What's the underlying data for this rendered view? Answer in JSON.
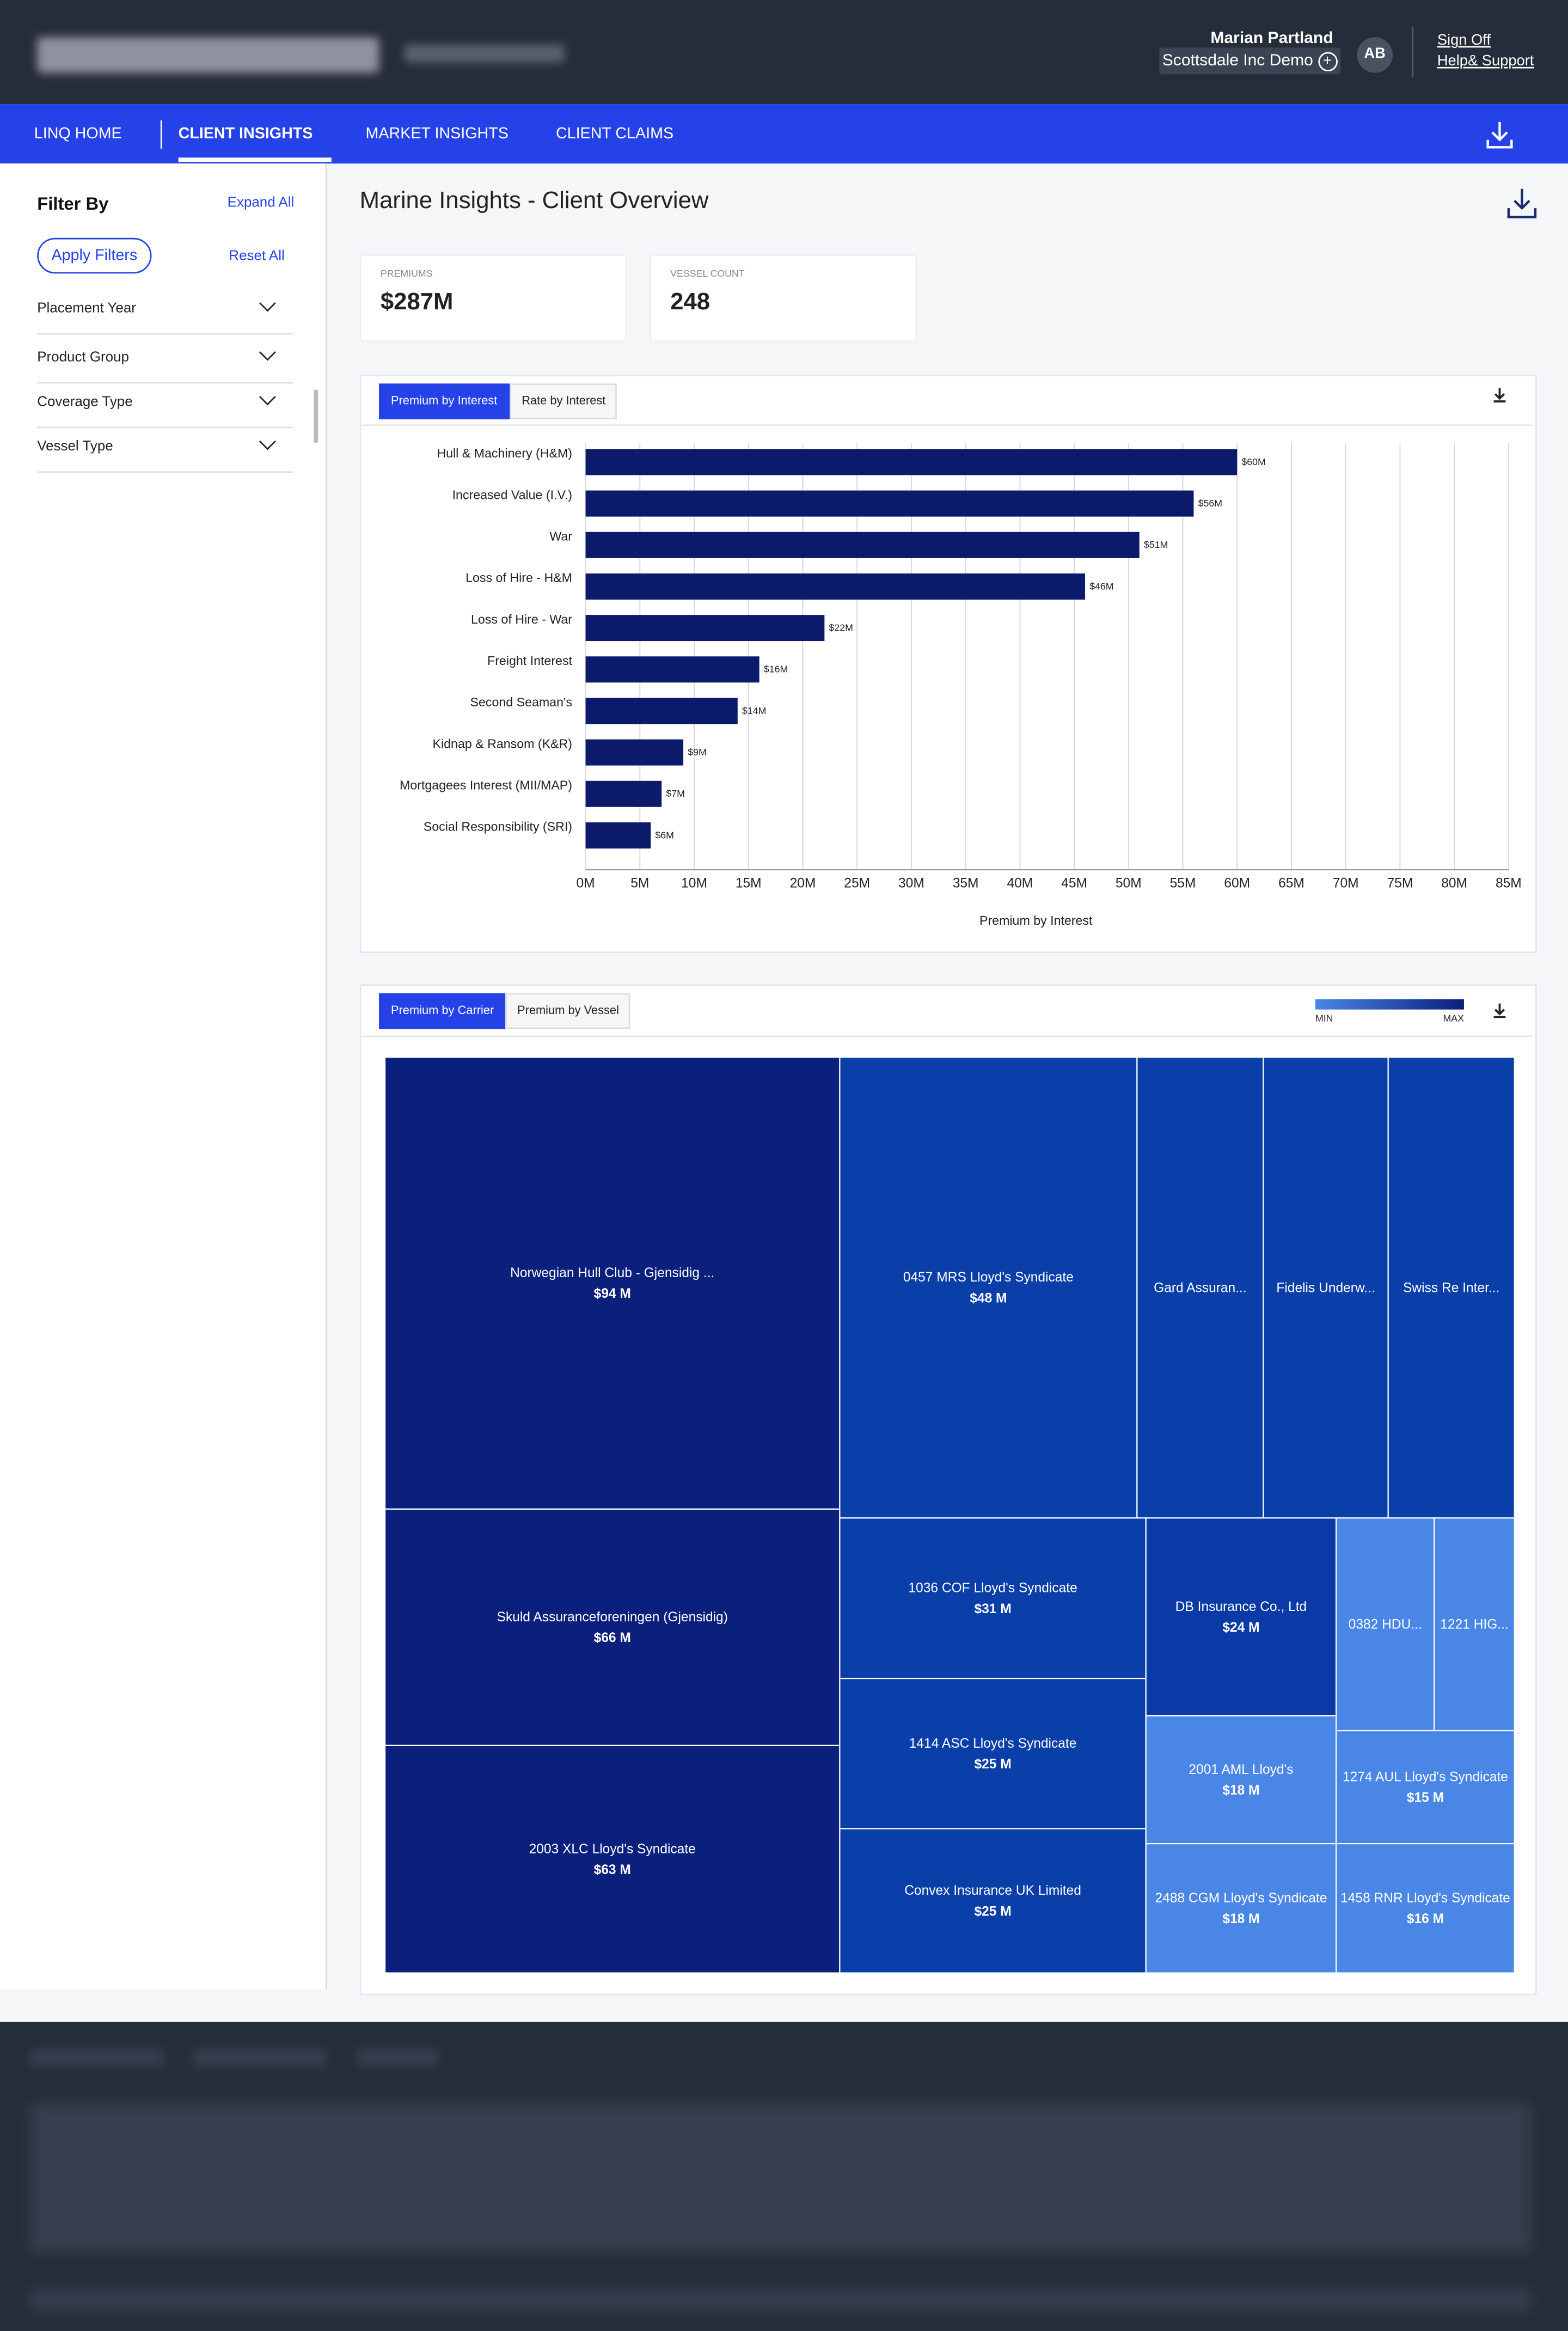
{
  "header": {
    "user_name": "Marian Partland",
    "org": "Scottsdale Inc Demo",
    "initials": "AB",
    "links": [
      "Sign Off",
      "Help& Support"
    ]
  },
  "nav": {
    "items": [
      "LINQ HOME",
      "CLIENT INSIGHTS",
      "MARKET INSIGHTS",
      "CLIENT CLAIMS"
    ],
    "active": 1
  },
  "sidebar": {
    "title": "Filter By",
    "expand": "Expand All",
    "apply": "Apply Filters",
    "reset": "Reset All",
    "filters": [
      "Placement Year",
      "Product Group",
      "Coverage Type",
      "Vessel Type"
    ]
  },
  "page": {
    "title": "Marine Insights - Client Overview"
  },
  "kpis": [
    {
      "label": "PREMIUMS",
      "value": "$287M"
    },
    {
      "label": "VESSEL COUNT",
      "value": "248"
    }
  ],
  "chart_data": [
    {
      "type": "bar",
      "orientation": "horizontal",
      "tabs": [
        "Premium by Interest",
        "Rate by Interest"
      ],
      "active_tab": 0,
      "categories": [
        "Hull & Machinery (H&M)",
        "Increased Value (I.V.)",
        "War",
        "Loss of Hire - H&M",
        "Loss of Hire - War",
        "Freight Interest",
        "Second Seaman's",
        "Kidnap & Ransom (K&R)",
        "Mortgagees Interest (MII/MAP)",
        "Social Responsibility (SRI)"
      ],
      "values": [
        60,
        56,
        51,
        46,
        22,
        16,
        14,
        9,
        7,
        6
      ],
      "value_labels": [
        "$60M",
        "$56M",
        "$51M",
        "$46M",
        "$22M",
        "$16M",
        "$14M",
        "$9M",
        "$7M",
        "$6M"
      ],
      "color": "#0c1a6b",
      "xlim": [
        0,
        85
      ],
      "xticks": [
        {
          "value": 0,
          "label": "0M"
        },
        {
          "value": 5,
          "label": "5M"
        },
        {
          "value": 10,
          "label": "10M"
        },
        {
          "value": 15,
          "label": "15M"
        },
        {
          "value": 20,
          "label": "20M"
        },
        {
          "value": 25,
          "label": "25M"
        },
        {
          "value": 30,
          "label": "30M"
        },
        {
          "value": 35,
          "label": "35M"
        },
        {
          "value": 40,
          "label": "40M"
        },
        {
          "value": 45,
          "label": "45M"
        },
        {
          "value": 50,
          "label": "50M"
        },
        {
          "value": 55,
          "label": "55M"
        },
        {
          "value": 60,
          "label": "60M"
        },
        {
          "value": 65,
          "label": "65M"
        },
        {
          "value": 70,
          "label": "70M"
        },
        {
          "value": 75,
          "label": "75M"
        },
        {
          "value": 80,
          "label": "80M"
        },
        {
          "value": 85,
          "label": "85M"
        }
      ],
      "x_label": "Premium by Interest",
      "grid": true
    },
    {
      "type": "treemap",
      "tabs": [
        "Premium by Carrier",
        "Premium by Vessel"
      ],
      "active_tab": 0,
      "legend": {
        "min_label": "MIN",
        "max_label": "MAX",
        "min_color": "#4a86e6",
        "max_color": "#0b1f7c"
      },
      "tiles": [
        {
          "name": "Norwegian Hull Club - Gjensidig ...",
          "value": 94,
          "value_label": "$94 M",
          "color": "#0b1f7c"
        },
        {
          "name": "Skuld Assuranceforeningen (Gjensidig)",
          "value": 66,
          "value_label": "$66 M",
          "color": "#0b1f7c"
        },
        {
          "name": "2003 XLC Lloyd's Syndicate",
          "value": 63,
          "value_label": "$63 M",
          "color": "#0b1f7c"
        },
        {
          "name": "0457 MRS Lloyd's Syndicate",
          "value": 48,
          "value_label": "$48 M",
          "color": "#0a3ea8"
        },
        {
          "name": "Gard Assuran...",
          "value": 21,
          "color": "#0a3ea8"
        },
        {
          "name": "Fidelis Underw...",
          "value": 21,
          "color": "#0a3ea8"
        },
        {
          "name": "Swiss Re Inter...",
          "value": 21,
          "color": "#0a3ea8"
        },
        {
          "name": "1036 COF Lloyd's Syndicate",
          "value": 31,
          "value_label": "$31 M",
          "color": "#0a3ea8"
        },
        {
          "name": "1414 ASC Lloyd's Syndicate",
          "value": 25,
          "value_label": "$25 M",
          "color": "#0a3ea8"
        },
        {
          "name": "Convex Insurance UK Limited",
          "value": 25,
          "value_label": "$25 M",
          "color": "#0a3ea8"
        },
        {
          "name": "DB Insurance Co., Ltd",
          "value": 24,
          "value_label": "$24 M",
          "color": "#0a3aa6"
        },
        {
          "name": "2001 AML Lloyd's",
          "value": 18,
          "value_label": "$18 M",
          "color": "#4a86e6"
        },
        {
          "name": "2488 CGM Lloyd's Syndicate",
          "value": 18,
          "value_label": "$18 M",
          "color": "#4a86e6"
        },
        {
          "name": "0382 HDU...",
          "value": 14,
          "color": "#4a86e6"
        },
        {
          "name": "1221 HIG...",
          "value": 12,
          "color": "#4a86e6"
        },
        {
          "name": "1274 AUL Lloyd's Syndicate",
          "value": 15,
          "value_label": "$15 M",
          "color": "#4a86e6"
        },
        {
          "name": "1458 RNR Lloyd's Syndicate",
          "value": 16,
          "value_label": "$16 M",
          "color": "#4a86e6"
        }
      ]
    }
  ]
}
